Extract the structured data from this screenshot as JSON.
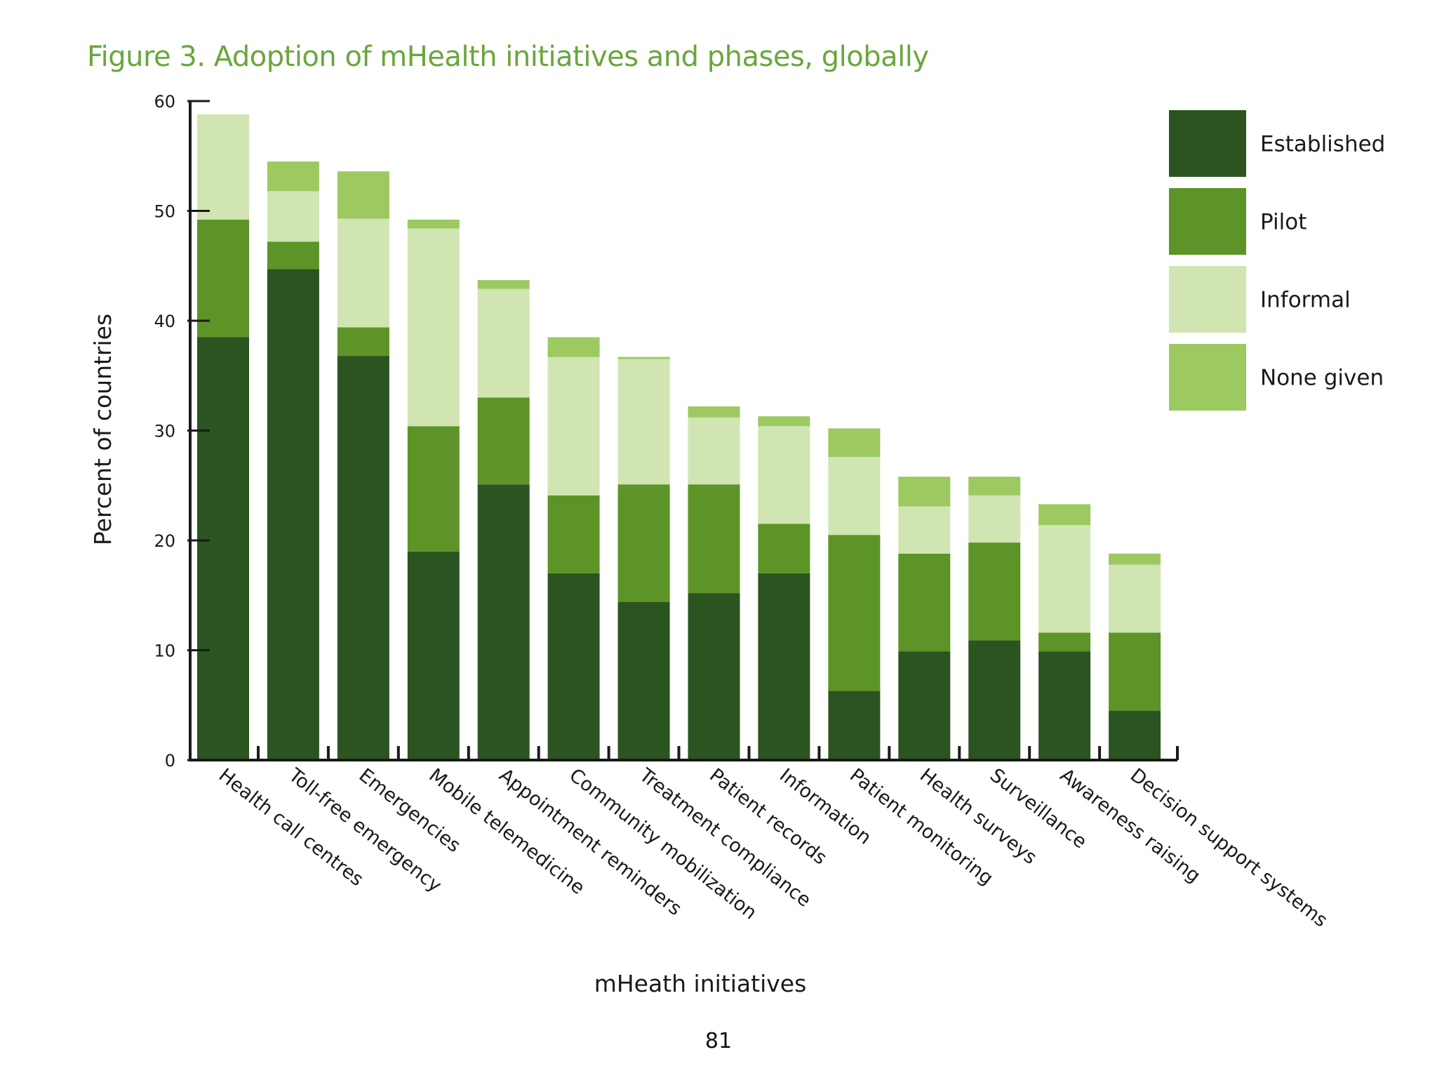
{
  "chart_data": {
    "type": "bar",
    "stacked": true,
    "title": "Figure 3. Adoption of mHealth initiatives and phases, globally",
    "xlabel": "mHeath initiatives",
    "ylabel": "Percent of countries",
    "ylim": [
      0,
      60
    ],
    "yticks": [
      0,
      10,
      20,
      30,
      40,
      50,
      60
    ],
    "grid": false,
    "legend_position": "top-right",
    "categories": [
      "Health call centres",
      "Toll-free emergency",
      "Emergencies",
      "Mobile telemedicine",
      "Appointment reminders",
      "Community mobilization",
      "Treatment compliance",
      "Patient records",
      "Information",
      "Patient monitoring",
      "Health surveys",
      "Surveillance",
      "Awareness raising",
      "Decision support systems"
    ],
    "series": [
      {
        "name": "Established",
        "color": "#2b5420",
        "values": [
          38.5,
          44.7,
          36.8,
          19.0,
          25.1,
          17.0,
          14.4,
          15.2,
          17.0,
          6.3,
          9.9,
          10.9,
          9.9,
          4.5
        ]
      },
      {
        "name": "Pilot",
        "color": "#5c9427",
        "values": [
          10.7,
          2.5,
          2.6,
          11.4,
          7.9,
          7.1,
          10.7,
          9.9,
          4.5,
          14.2,
          8.9,
          8.9,
          1.7,
          7.1
        ]
      },
      {
        "name": "Informal",
        "color": "#d0e5b2",
        "values": [
          9.6,
          4.6,
          9.9,
          18.0,
          9.9,
          12.6,
          11.4,
          6.1,
          8.9,
          7.1,
          4.3,
          4.3,
          9.8,
          6.2
        ]
      },
      {
        "name": "None given",
        "color": "#9cc960",
        "values": [
          0.0,
          2.7,
          4.3,
          0.8,
          0.8,
          1.8,
          0.2,
          1.0,
          0.9,
          2.6,
          2.7,
          1.7,
          1.9,
          1.0
        ]
      }
    ]
  },
  "page": {
    "number": "81"
  }
}
